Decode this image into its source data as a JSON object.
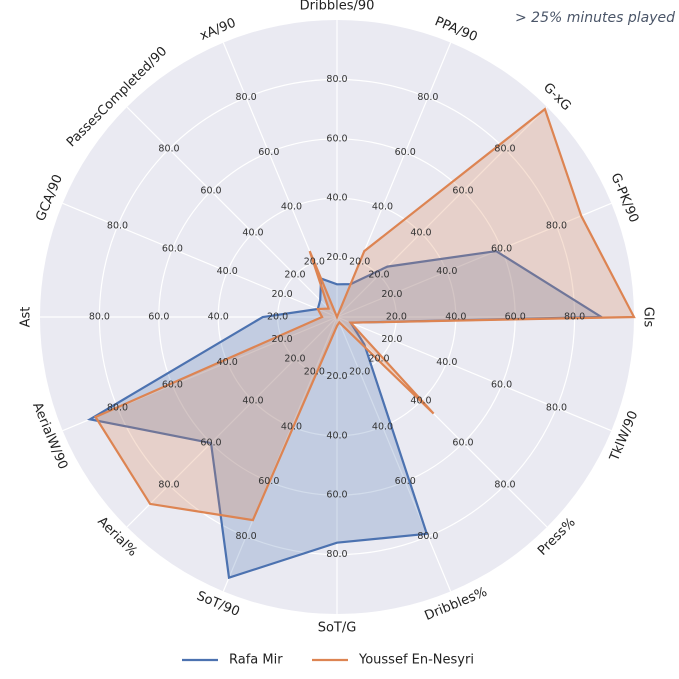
{
  "chart_data": {
    "type": "radar",
    "annotation": "> 25% minutes played",
    "axes": [
      "Dribbles/90",
      "PPA/90",
      "G-xG",
      "G-PK/90",
      "Gls",
      "TklW/90",
      "Press%",
      "Dribbles%",
      "SoT/G",
      "SoT/90",
      "Aerial%",
      "AerialW/90",
      "Ast",
      "GCA/90",
      "PassesCompleted/90",
      "xA/90"
    ],
    "rlim": [
      0,
      100
    ],
    "ring_values": [
      20,
      40,
      60,
      80
    ],
    "tick_labels": [
      "20.0",
      "40.0",
      "60.0",
      "80.0"
    ],
    "grid": true,
    "legend_position": "bottom-center",
    "series": [
      {
        "name": "Rafa Mir",
        "color": "#4c72b0",
        "values": [
          11,
          12,
          24,
          58,
          89,
          5,
          13,
          79,
          76,
          95,
          60,
          90,
          25,
          7,
          8,
          14
        ]
      },
      {
        "name": "Youssef En-Nesyri",
        "color": "#dd8452",
        "values": [
          0,
          24,
          99,
          89,
          100,
          5,
          46,
          2,
          3,
          74,
          89,
          88,
          5,
          7,
          4,
          24
        ]
      }
    ],
    "colors": {
      "background": "#eaeaf2",
      "grid": "#ffffff",
      "label": "#333333"
    }
  }
}
